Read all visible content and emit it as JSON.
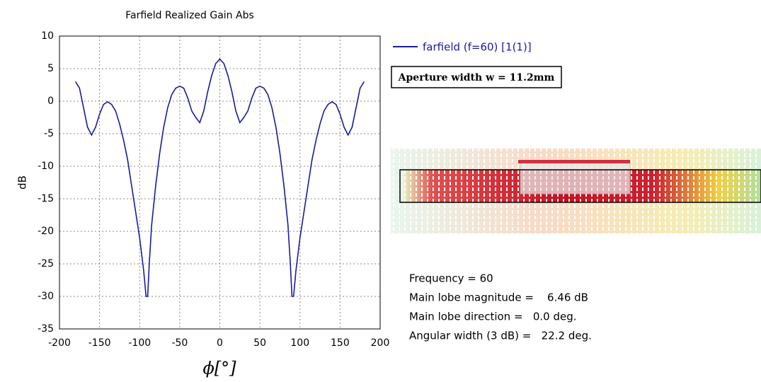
{
  "chart_data": {
    "type": "line",
    "title": "Farfield Realized Gain Abs",
    "x_label": "ϕ[°]",
    "y_label": "dB",
    "xlim": [
      -200,
      200
    ],
    "xticks": [
      -200,
      -150,
      -100,
      -50,
      0,
      50,
      100,
      150,
      200
    ],
    "ylim": [
      -35,
      10
    ],
    "yticks": [
      -35,
      -30,
      -25,
      -20,
      -15,
      -10,
      -5,
      0,
      5,
      10
    ],
    "grid": true,
    "x": [
      -180,
      -175,
      -170,
      -165,
      -160,
      -155,
      -150,
      -145,
      -140,
      -135,
      -130,
      -125,
      -120,
      -115,
      -110,
      -105,
      -100,
      -95,
      -92,
      -90,
      -88,
      -85,
      -80,
      -75,
      -70,
      -65,
      -60,
      -55,
      -50,
      -45,
      -40,
      -35,
      -30,
      -25,
      -20,
      -15,
      -10,
      -5,
      0,
      5,
      10,
      15,
      20,
      25,
      30,
      35,
      40,
      45,
      50,
      55,
      60,
      65,
      70,
      75,
      80,
      85,
      88,
      90,
      92,
      95,
      100,
      105,
      110,
      115,
      120,
      125,
      130,
      135,
      140,
      145,
      150,
      155,
      160,
      165,
      170,
      175,
      180
    ],
    "series": [
      {
        "name": "farfield (f=60) [1(1)]",
        "color": "#1a1aa0",
        "values": [
          3,
          2,
          -1,
          -4,
          -5.2,
          -4,
          -2,
          -0.5,
          -0.1,
          -0.5,
          -1.5,
          -3.5,
          -6,
          -9,
          -13,
          -17,
          -21,
          -26,
          -30,
          -30,
          -25,
          -19,
          -13,
          -8,
          -4,
          -1,
          1,
          2,
          2.3,
          2,
          0.5,
          -1.5,
          -2.5,
          -3.3,
          -1.5,
          1.5,
          4,
          5.8,
          6.46,
          5.8,
          4,
          1.5,
          -1.5,
          -3.3,
          -2.5,
          -1.5,
          0.5,
          2,
          2.3,
          2,
          1,
          -1,
          -4,
          -8,
          -13,
          -19,
          -25,
          -30,
          -30,
          -26,
          -21,
          -17,
          -13,
          -9,
          -6,
          -3.5,
          -1.5,
          -0.5,
          -0.1,
          -0.5,
          -2,
          -4,
          -5.2,
          -4,
          -1,
          2,
          3
        ]
      }
    ],
    "box_annotation": "Aperture width w = 11.2mm",
    "info": [
      "Frequency = 60",
      "Main lobe magnitude =    6.46 dB",
      "Main lobe direction =   0.0 deg.",
      "Angular width (3 dB) =   22.2 deg."
    ]
  }
}
